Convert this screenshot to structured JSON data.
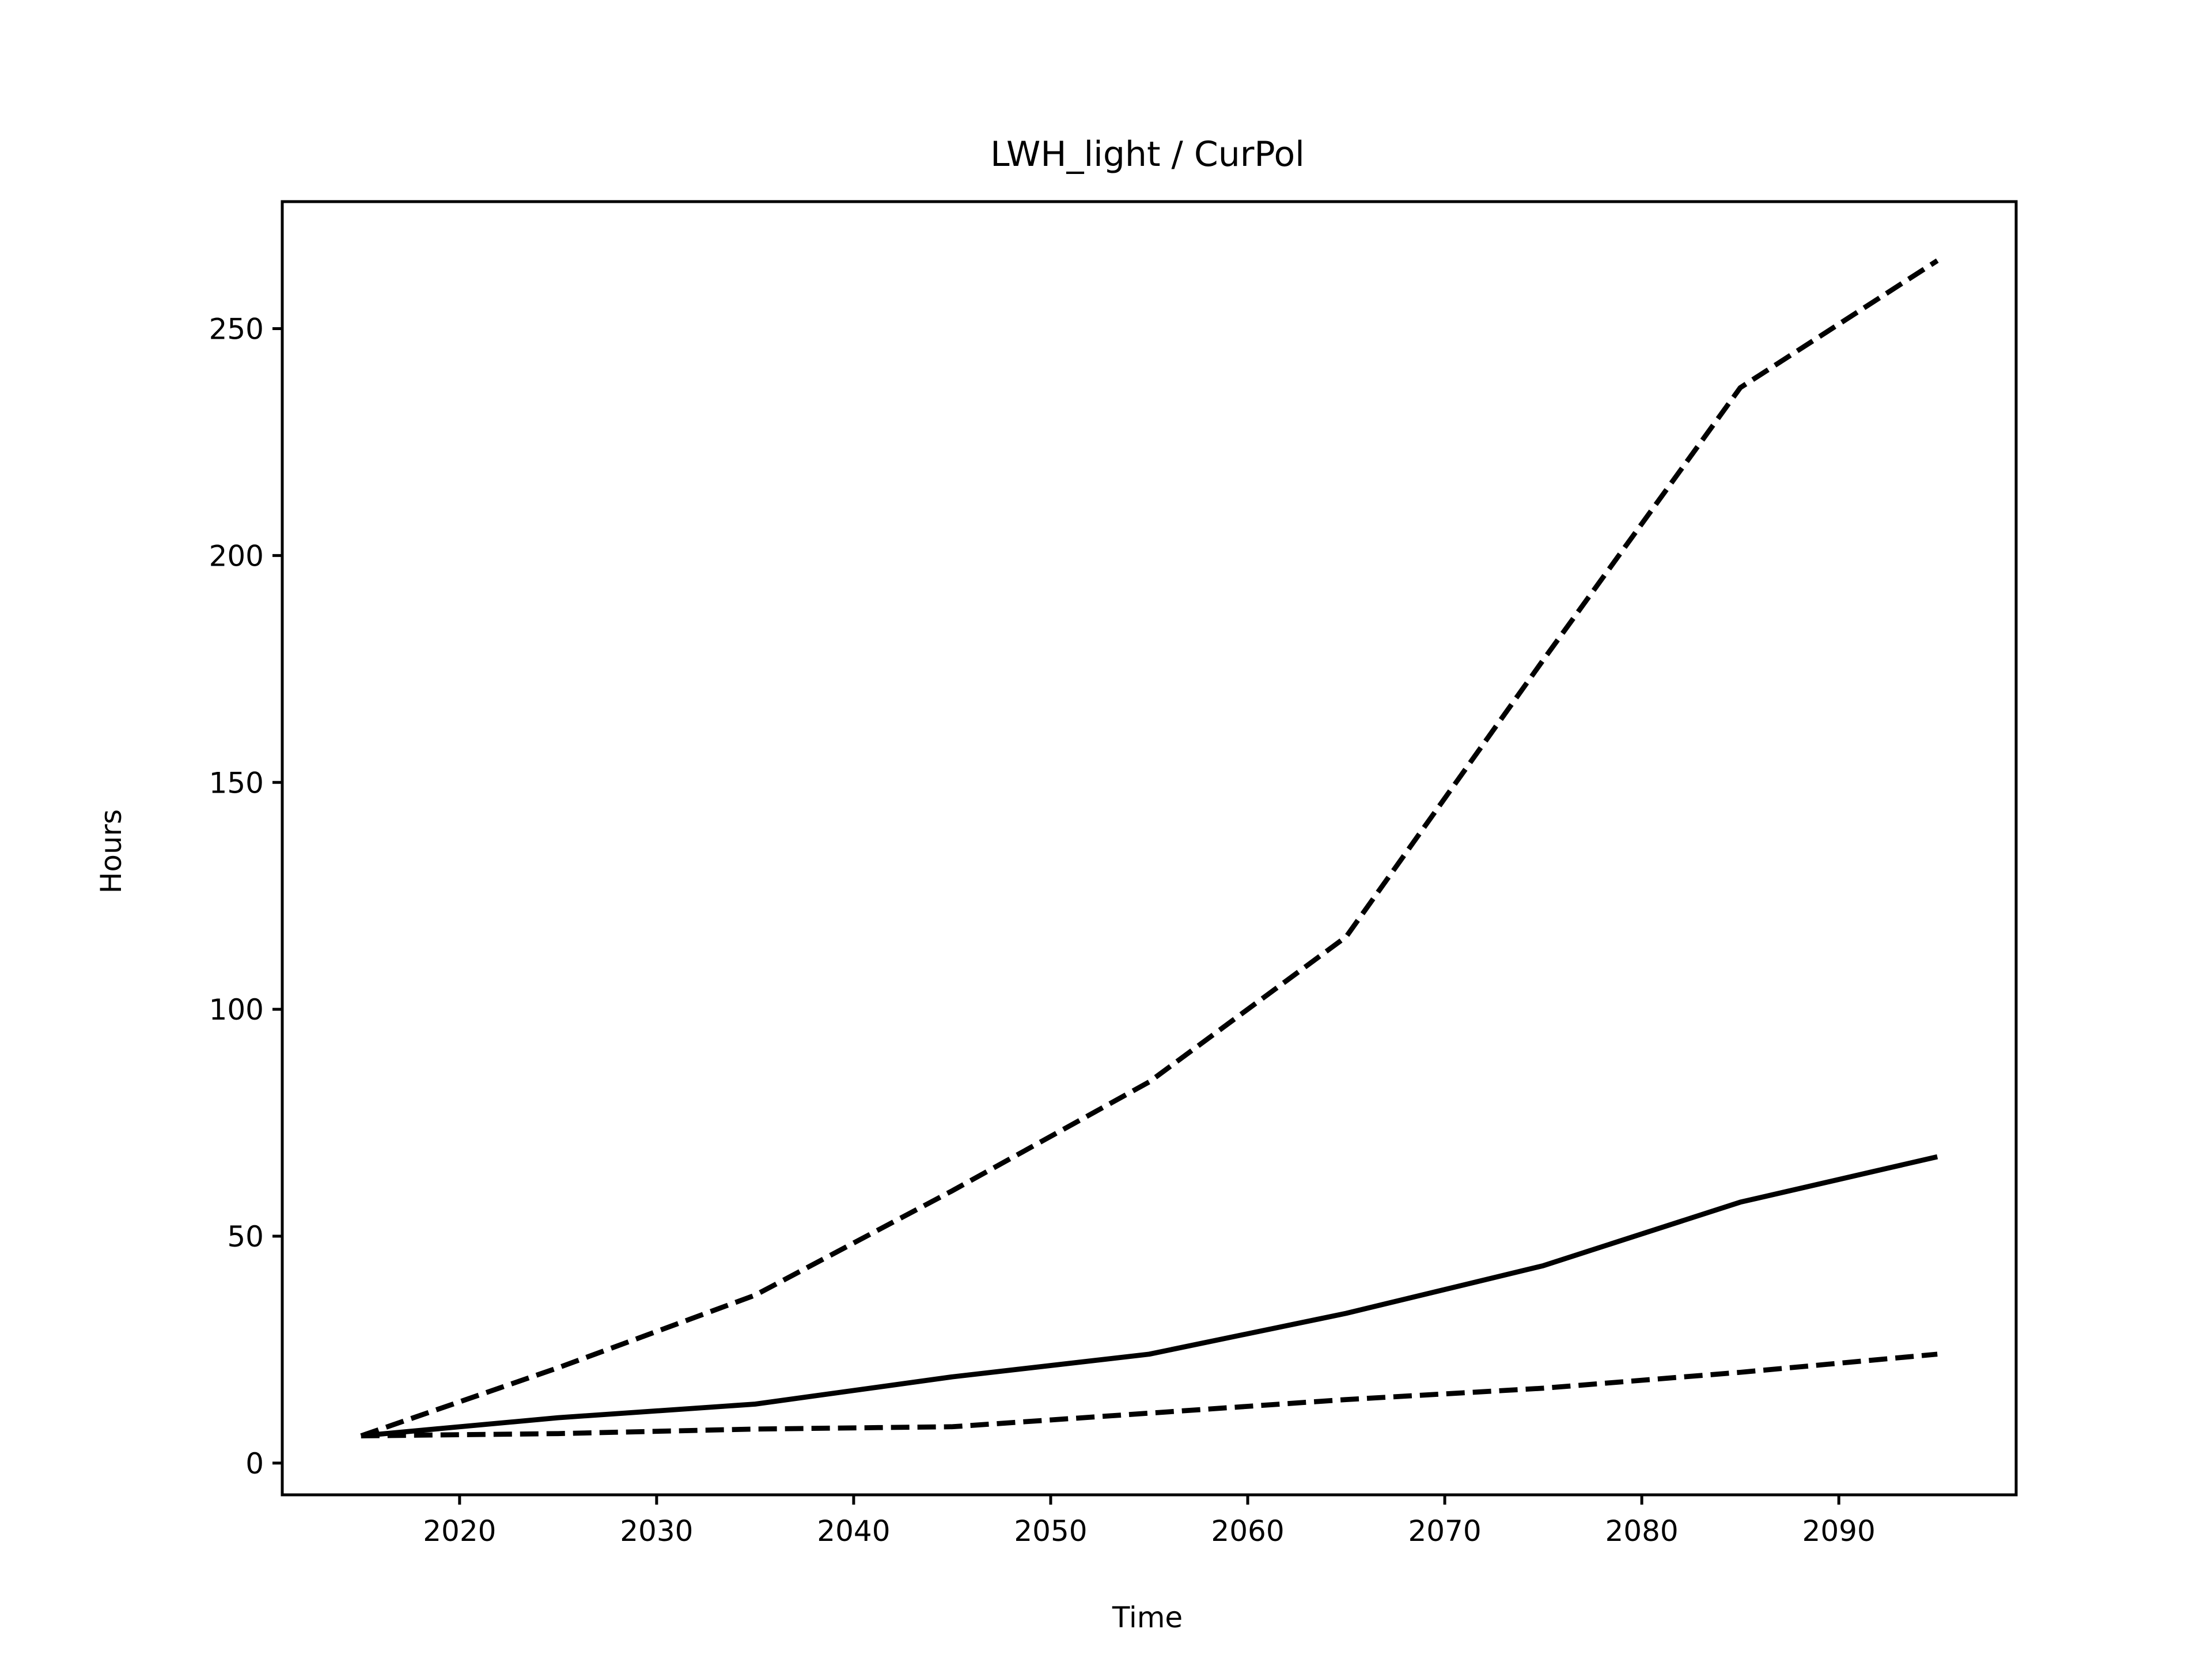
{
  "chart_data": {
    "type": "line",
    "title": "LWH_light / CurPol",
    "xlabel": "Time",
    "ylabel": "Hours",
    "xlim": [
      2011,
      2099
    ],
    "ylim": [
      -7,
      278
    ],
    "x_ticks": [
      2020,
      2030,
      2040,
      2050,
      2060,
      2070,
      2080,
      2090
    ],
    "y_ticks": [
      0,
      50,
      100,
      150,
      200,
      250
    ],
    "grid": false,
    "colors": {
      "line": "#000000",
      "frame": "#000000",
      "background": "#ffffff"
    },
    "x": [
      2015,
      2025,
      2035,
      2045,
      2055,
      2065,
      2075,
      2085,
      2095
    ],
    "series": [
      {
        "style": "dashed",
        "values": [
          6,
          21,
          37,
          60,
          84,
          116,
          177,
          237,
          265
        ]
      },
      {
        "style": "solid",
        "values": [
          6,
          10,
          13,
          19,
          24,
          33,
          43.5,
          57.5,
          67.5
        ]
      },
      {
        "style": "dashed",
        "values": [
          6,
          6.5,
          7.5,
          8,
          11,
          14,
          16.5,
          20,
          24
        ]
      }
    ]
  }
}
